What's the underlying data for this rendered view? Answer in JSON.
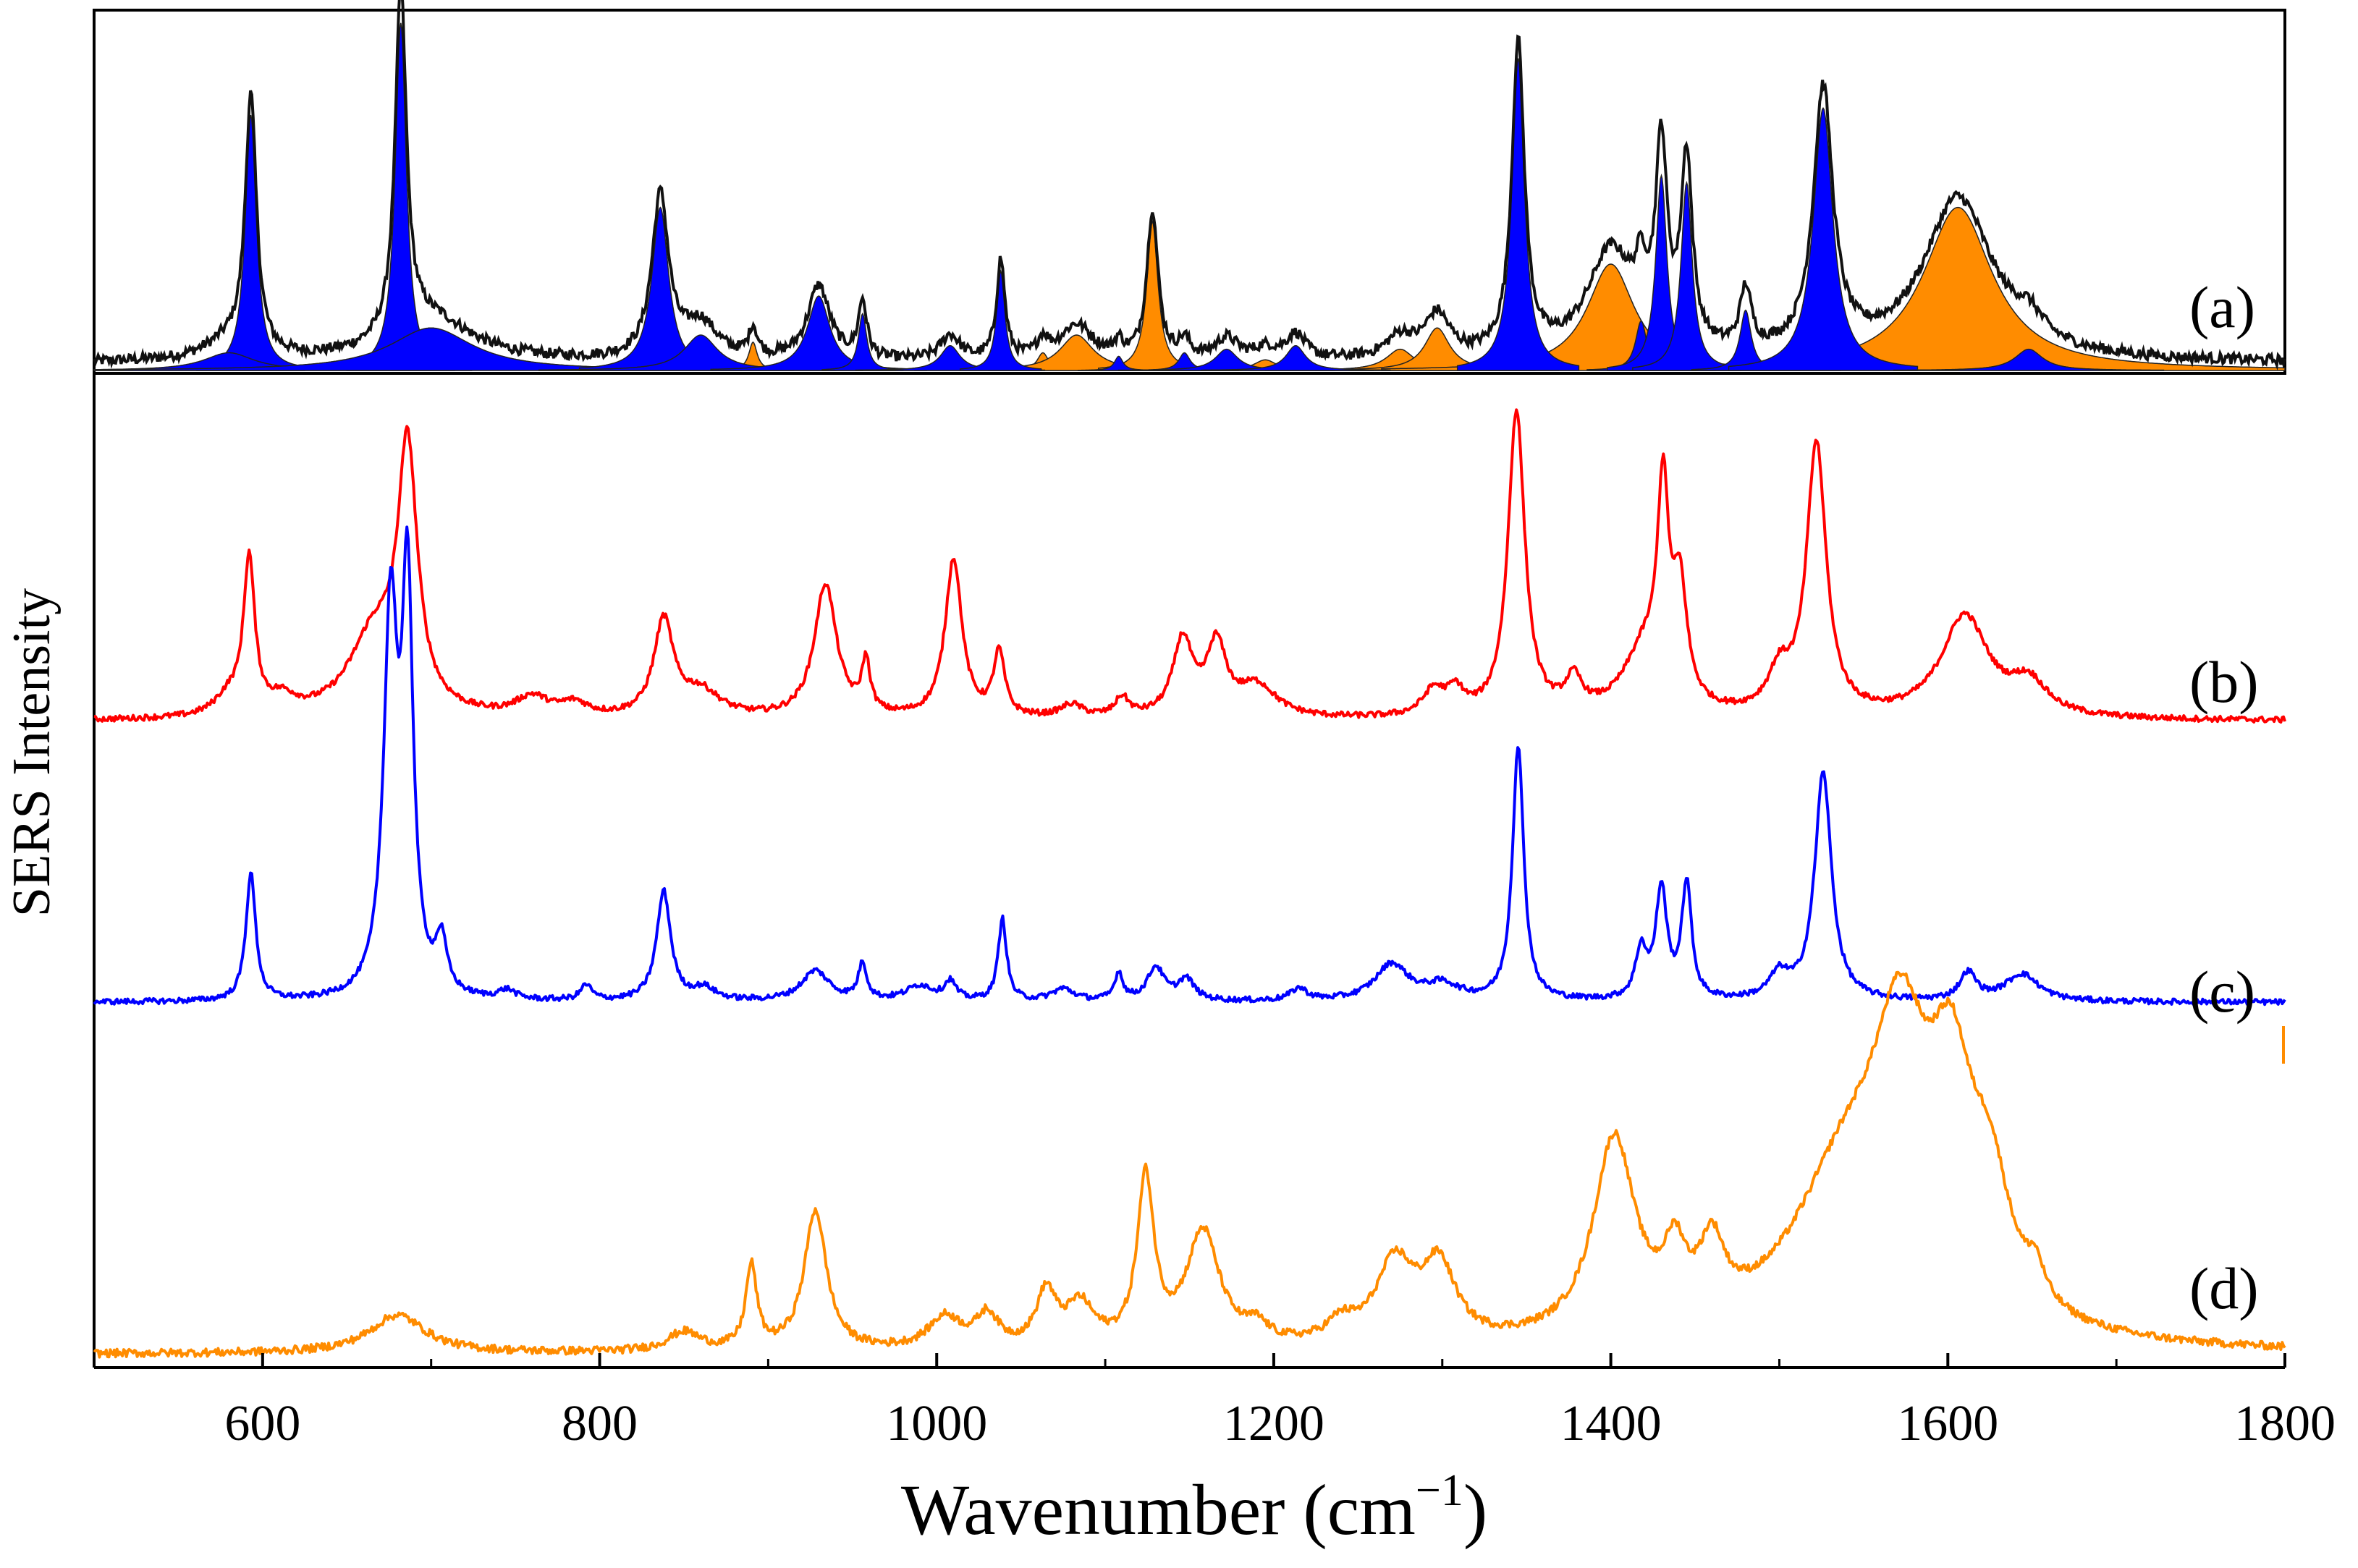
{
  "chart_data": {
    "type": "line",
    "title": "",
    "xlabel": "Wavenumber (cm",
    "xlabel_sup": "−1",
    "xlabel_close": ")",
    "ylabel": "SERS Intensity",
    "xlim": [
      500,
      1800
    ],
    "xticks": [
      600,
      800,
      1000,
      1200,
      1400,
      1600,
      1800
    ],
    "xtick_labels": [
      "600",
      "800",
      "1000",
      "1200",
      "1400",
      "1600",
      "1800"
    ],
    "grid": false,
    "colors": {
      "a_trace": "#111111",
      "blue": "#0000ff",
      "red": "#ff0000",
      "orange": "#ff8c00",
      "orange_fill": "#ff8c00",
      "axis": "#000000"
    },
    "panels": [
      {
        "id": "a",
        "label": "(a)",
        "description_type": "fit",
        "baseline_noise": 0.03,
        "blue_bands": [
          {
            "center": 593,
            "height": 0.72,
            "width": 4
          },
          {
            "center": 580,
            "height": 0.05,
            "width": 18
          },
          {
            "center": 682,
            "height": 0.98,
            "width": 4
          },
          {
            "center": 700,
            "height": 0.12,
            "width": 30
          },
          {
            "center": 836,
            "height": 0.46,
            "width": 6
          },
          {
            "center": 860,
            "height": 0.1,
            "width": 12
          },
          {
            "center": 930,
            "height": 0.21,
            "width": 8
          },
          {
            "center": 956,
            "height": 0.16,
            "width": 3
          },
          {
            "center": 1008,
            "height": 0.07,
            "width": 7
          },
          {
            "center": 1038,
            "height": 0.28,
            "width": 3
          },
          {
            "center": 1108,
            "height": 0.04,
            "width": 3
          },
          {
            "center": 1147,
            "height": 0.05,
            "width": 4
          },
          {
            "center": 1172,
            "height": 0.06,
            "width": 8
          },
          {
            "center": 1213,
            "height": 0.07,
            "width": 7
          },
          {
            "center": 1345,
            "height": 0.88,
            "width": 4.5
          },
          {
            "center": 1418,
            "height": 0.14,
            "width": 4
          },
          {
            "center": 1430,
            "height": 0.55,
            "width": 4
          },
          {
            "center": 1445,
            "height": 0.53,
            "width": 4
          },
          {
            "center": 1480,
            "height": 0.17,
            "width": 4
          },
          {
            "center": 1526,
            "height": 0.74,
            "width": 7
          },
          {
            "center": 1648,
            "height": 0.06,
            "width": 10
          }
        ],
        "orange_bands": [
          {
            "center": 891,
            "height": 0.08,
            "width": 3
          },
          {
            "center": 1063,
            "height": 0.05,
            "width": 4
          },
          {
            "center": 1083,
            "height": 0.1,
            "width": 12
          },
          {
            "center": 1128,
            "height": 0.42,
            "width": 4
          },
          {
            "center": 1195,
            "height": 0.03,
            "width": 8
          },
          {
            "center": 1275,
            "height": 0.06,
            "width": 10
          },
          {
            "center": 1297,
            "height": 0.12,
            "width": 9
          },
          {
            "center": 1400,
            "height": 0.3,
            "width": 17
          },
          {
            "center": 1606,
            "height": 0.46,
            "width": 25
          }
        ]
      },
      {
        "id": "b",
        "label": "(b)",
        "peaks": [
          {
            "center": 592,
            "height": 0.48,
            "width": 4
          },
          {
            "center": 580,
            "height": 0.06,
            "width": 10
          },
          {
            "center": 612,
            "height": 0.05,
            "width": 10
          },
          {
            "center": 686,
            "height": 0.8,
            "width": 7
          },
          {
            "center": 666,
            "height": 0.25,
            "width": 18
          },
          {
            "center": 760,
            "height": 0.06,
            "width": 12
          },
          {
            "center": 785,
            "height": 0.04,
            "width": 10
          },
          {
            "center": 838,
            "height": 0.3,
            "width": 7
          },
          {
            "center": 860,
            "height": 0.08,
            "width": 14
          },
          {
            "center": 934,
            "height": 0.42,
            "width": 8
          },
          {
            "center": 958,
            "height": 0.16,
            "width": 3
          },
          {
            "center": 1010,
            "height": 0.5,
            "width": 6
          },
          {
            "center": 1037,
            "height": 0.2,
            "width": 4
          },
          {
            "center": 1080,
            "height": 0.04,
            "width": 8
          },
          {
            "center": 1110,
            "height": 0.06,
            "width": 5
          },
          {
            "center": 1146,
            "height": 0.24,
            "width": 7
          },
          {
            "center": 1166,
            "height": 0.22,
            "width": 7
          },
          {
            "center": 1190,
            "height": 0.1,
            "width": 14
          },
          {
            "center": 1295,
            "height": 0.08,
            "width": 8
          },
          {
            "center": 1308,
            "height": 0.07,
            "width": 6
          },
          {
            "center": 1344,
            "height": 0.96,
            "width": 6
          },
          {
            "center": 1378,
            "height": 0.1,
            "width": 6
          },
          {
            "center": 1420,
            "height": 0.2,
            "width": 15
          },
          {
            "center": 1431,
            "height": 0.62,
            "width": 4
          },
          {
            "center": 1441,
            "height": 0.35,
            "width": 5
          },
          {
            "center": 1500,
            "height": 0.12,
            "width": 8
          },
          {
            "center": 1522,
            "height": 0.85,
            "width": 7
          },
          {
            "center": 1610,
            "height": 0.32,
            "width": 17
          },
          {
            "center": 1648,
            "height": 0.1,
            "width": 13
          }
        ]
      },
      {
        "id": "c",
        "label": "(c)",
        "peaks": [
          {
            "center": 593,
            "height": 0.42,
            "width": 3.5
          },
          {
            "center": 676,
            "height": 1.25,
            "width": 5
          },
          {
            "center": 686,
            "height": 1.3,
            "width": 4
          },
          {
            "center": 706,
            "height": 0.17,
            "width": 4
          },
          {
            "center": 745,
            "height": 0.03,
            "width": 6
          },
          {
            "center": 792,
            "height": 0.05,
            "width": 4
          },
          {
            "center": 838,
            "height": 0.36,
            "width": 5
          },
          {
            "center": 862,
            "height": 0.04,
            "width": 8
          },
          {
            "center": 928,
            "height": 0.1,
            "width": 10
          },
          {
            "center": 956,
            "height": 0.12,
            "width": 3
          },
          {
            "center": 990,
            "height": 0.05,
            "width": 10
          },
          {
            "center": 1008,
            "height": 0.06,
            "width": 4
          },
          {
            "center": 1039,
            "height": 0.27,
            "width": 3
          },
          {
            "center": 1075,
            "height": 0.04,
            "width": 8
          },
          {
            "center": 1108,
            "height": 0.09,
            "width": 3
          },
          {
            "center": 1130,
            "height": 0.11,
            "width": 6
          },
          {
            "center": 1148,
            "height": 0.07,
            "width": 6
          },
          {
            "center": 1215,
            "height": 0.04,
            "width": 6
          },
          {
            "center": 1270,
            "height": 0.12,
            "width": 12
          },
          {
            "center": 1300,
            "height": 0.05,
            "width": 12
          },
          {
            "center": 1345,
            "height": 0.84,
            "width": 4
          },
          {
            "center": 1418,
            "height": 0.16,
            "width": 4
          },
          {
            "center": 1430,
            "height": 0.36,
            "width": 4
          },
          {
            "center": 1445,
            "height": 0.38,
            "width": 3.5
          },
          {
            "center": 1500,
            "height": 0.08,
            "width": 7
          },
          {
            "center": 1526,
            "height": 0.75,
            "width": 6
          },
          {
            "center": 1612,
            "height": 0.09,
            "width": 6
          },
          {
            "center": 1644,
            "height": 0.09,
            "width": 12
          }
        ]
      },
      {
        "id": "d",
        "label": "(d)",
        "peaks": [
          {
            "center": 680,
            "height": 0.12,
            "width": 20
          },
          {
            "center": 850,
            "height": 0.06,
            "width": 12
          },
          {
            "center": 890,
            "height": 0.26,
            "width": 4
          },
          {
            "center": 928,
            "height": 0.44,
            "width": 8
          },
          {
            "center": 1005,
            "height": 0.1,
            "width": 12
          },
          {
            "center": 1030,
            "height": 0.1,
            "width": 8
          },
          {
            "center": 1065,
            "height": 0.17,
            "width": 7
          },
          {
            "center": 1085,
            "height": 0.13,
            "width": 10
          },
          {
            "center": 1124,
            "height": 0.52,
            "width": 6
          },
          {
            "center": 1158,
            "height": 0.36,
            "width": 12
          },
          {
            "center": 1190,
            "height": 0.05,
            "width": 8
          },
          {
            "center": 1240,
            "height": 0.06,
            "width": 10
          },
          {
            "center": 1272,
            "height": 0.25,
            "width": 14
          },
          {
            "center": 1298,
            "height": 0.23,
            "width": 12
          },
          {
            "center": 1402,
            "height": 0.62,
            "width": 15
          },
          {
            "center": 1438,
            "height": 0.2,
            "width": 8
          },
          {
            "center": 1460,
            "height": 0.22,
            "width": 9
          },
          {
            "center": 1540,
            "height": 0.5,
            "width": 40
          },
          {
            "center": 1572,
            "height": 0.72,
            "width": 20
          },
          {
            "center": 1602,
            "height": 0.62,
            "width": 16
          },
          {
            "center": 1625,
            "height": 0.35,
            "width": 15
          },
          {
            "center": 1652,
            "height": 0.1,
            "width": 6
          }
        ]
      }
    ]
  }
}
